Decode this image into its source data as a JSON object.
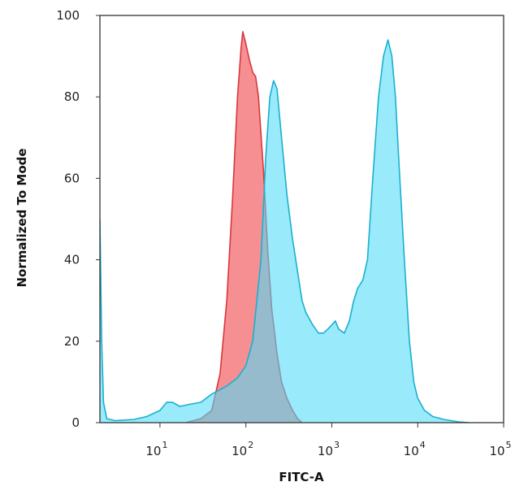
{
  "chart_data": {
    "type": "area",
    "title": "",
    "xlabel": "FITC-A",
    "ylabel": "Normalized To Mode",
    "xscale": "log",
    "xlim": [
      2,
      100000
    ],
    "ylim": [
      0,
      100
    ],
    "x_ticks": [
      {
        "value": 10,
        "base": "10",
        "exp": "1"
      },
      {
        "value": 100,
        "base": "10",
        "exp": "2"
      },
      {
        "value": 1000,
        "base": "10",
        "exp": "3"
      },
      {
        "value": 10000,
        "base": "10",
        "exp": "4"
      },
      {
        "value": 100000,
        "base": "10",
        "exp": "5"
      }
    ],
    "y_ticks": [
      {
        "value": 0,
        "label": "0"
      },
      {
        "value": 20,
        "label": "20"
      },
      {
        "value": 40,
        "label": "40"
      },
      {
        "value": 60,
        "label": "60"
      },
      {
        "value": 80,
        "label": "80"
      },
      {
        "value": 100,
        "label": "100"
      }
    ],
    "grid": false,
    "legend": "none",
    "series": [
      {
        "color": "#f47b7e",
        "line_color": "#d9363e",
        "points": [
          [
            20,
            0
          ],
          [
            30,
            1
          ],
          [
            40,
            3
          ],
          [
            50,
            12
          ],
          [
            60,
            30
          ],
          [
            70,
            55
          ],
          [
            80,
            80
          ],
          [
            88,
            92
          ],
          [
            92,
            96
          ],
          [
            100,
            93
          ],
          [
            110,
            89
          ],
          [
            120,
            86
          ],
          [
            130,
            85
          ],
          [
            140,
            80
          ],
          [
            160,
            62
          ],
          [
            180,
            42
          ],
          [
            200,
            28
          ],
          [
            230,
            17
          ],
          [
            260,
            10
          ],
          [
            300,
            6
          ],
          [
            350,
            3
          ],
          [
            400,
            1
          ],
          [
            450,
            0
          ]
        ]
      },
      {
        "color": "#4fdbf8",
        "line_color": "#19b0cf",
        "points": [
          [
            2,
            50
          ],
          [
            2.1,
            20
          ],
          [
            2.2,
            5
          ],
          [
            2.4,
            1
          ],
          [
            3,
            0.5
          ],
          [
            5,
            0.8
          ],
          [
            7,
            1.5
          ],
          [
            10,
            3
          ],
          [
            12,
            5
          ],
          [
            14,
            5
          ],
          [
            17,
            4
          ],
          [
            22,
            4.5
          ],
          [
            30,
            5
          ],
          [
            40,
            7
          ],
          [
            60,
            9
          ],
          [
            80,
            11
          ],
          [
            100,
            14
          ],
          [
            120,
            20
          ],
          [
            150,
            40
          ],
          [
            170,
            65
          ],
          [
            190,
            80
          ],
          [
            210,
            84
          ],
          [
            230,
            82
          ],
          [
            260,
            70
          ],
          [
            300,
            56
          ],
          [
            350,
            45
          ],
          [
            400,
            37
          ],
          [
            450,
            30
          ],
          [
            500,
            27
          ],
          [
            600,
            24
          ],
          [
            700,
            22
          ],
          [
            800,
            22
          ],
          [
            900,
            23
          ],
          [
            1000,
            24
          ],
          [
            1100,
            25
          ],
          [
            1200,
            23
          ],
          [
            1400,
            22
          ],
          [
            1600,
            25
          ],
          [
            1800,
            30
          ],
          [
            2000,
            33
          ],
          [
            2300,
            35
          ],
          [
            2600,
            40
          ],
          [
            3000,
            60
          ],
          [
            3500,
            80
          ],
          [
            4000,
            90
          ],
          [
            4500,
            94
          ],
          [
            5000,
            90
          ],
          [
            5500,
            80
          ],
          [
            6000,
            65
          ],
          [
            7000,
            40
          ],
          [
            8000,
            20
          ],
          [
            9000,
            10
          ],
          [
            10000,
            6
          ],
          [
            12000,
            3
          ],
          [
            15000,
            1.5
          ],
          [
            20000,
            0.8
          ],
          [
            30000,
            0.2
          ],
          [
            40000,
            0
          ]
        ]
      }
    ]
  }
}
